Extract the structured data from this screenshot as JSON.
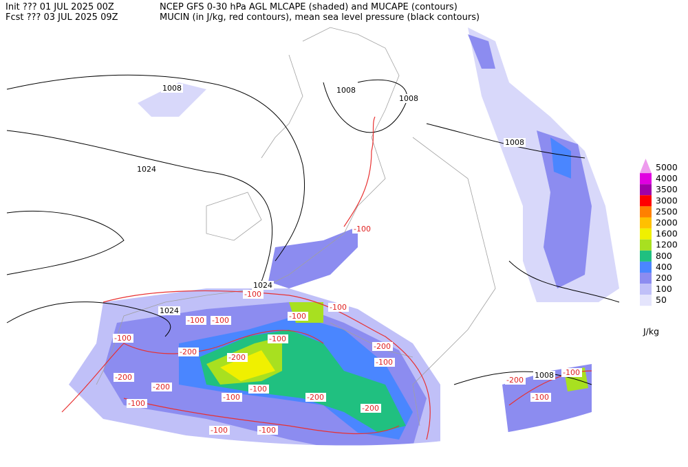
{
  "header": {
    "line1": [
      "Init  ??? 01 JUL 2025 00Z",
      "NCEP GFS 0-30 hPa AGL MLCAPE (shaded) and MUCAPE (contours)"
    ],
    "line2": [
      "Fcst ??? 03 JUL 2025 09Z",
      "MUCIN (in J/kg, red contours), mean sea level pressure (black contours)"
    ]
  },
  "legend": {
    "levels": [
      {
        "label": "5000",
        "color": "#ee9cee"
      },
      {
        "label": "4000",
        "color": "#e000e0"
      },
      {
        "label": "3500",
        "color": "#a000a8"
      },
      {
        "label": "3000",
        "color": "#ff0000"
      },
      {
        "label": "2500",
        "color": "#ff8000"
      },
      {
        "label": "2000",
        "color": "#ffc000"
      },
      {
        "label": "1600",
        "color": "#f0f000"
      },
      {
        "label": "1200",
        "color": "#a8e020"
      },
      {
        "label": "800",
        "color": "#20c080"
      },
      {
        "label": "400",
        "color": "#4a86ff"
      },
      {
        "label": "200",
        "color": "#8c8cf0"
      },
      {
        "label": "100",
        "color": "#c0c0f8"
      },
      {
        "label": "50",
        "color": "#e4e4fc"
      }
    ],
    "unit": "J/kg"
  },
  "pressure_labels": [
    "1008",
    "1008",
    "1008",
    "1008",
    "1024",
    "1024",
    "1024",
    "1008"
  ],
  "cin_labels": [
    "-100",
    "-100",
    "-100",
    "-100",
    "-100",
    "-100",
    "-100",
    "-100",
    "-200",
    "-200",
    "-200",
    "-200",
    "-100",
    "-200",
    "-100",
    "-100",
    "-200",
    "-200",
    "-100",
    "-100",
    "-100",
    "-200",
    "-100",
    "-100"
  ]
}
